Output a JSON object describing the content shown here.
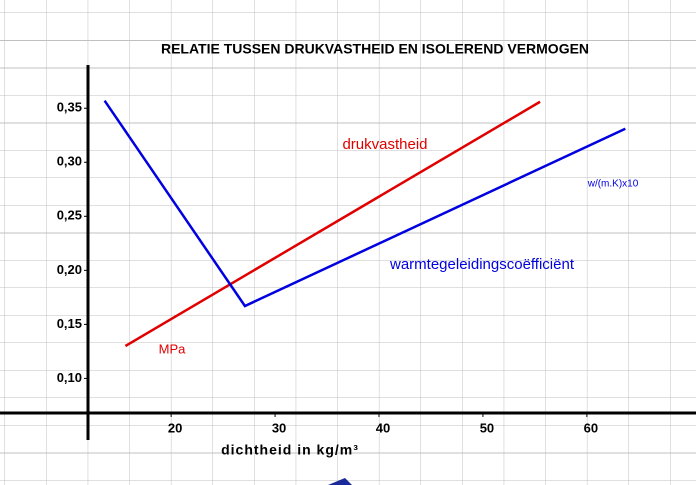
{
  "chart_data": {
    "type": "line",
    "title": "RELATIE TUSSEN DRUKVASTHEID EN ISOLEREND VERMOGEN",
    "x_label": "dichtheid in kg/m³",
    "xlim": [
      12,
      68
    ],
    "xticks": [
      20,
      30,
      40,
      50,
      60
    ],
    "ylim": [
      0.068,
      0.39
    ],
    "yticks": [
      {
        "value": 0.1,
        "label": "0,10"
      },
      {
        "value": 0.15,
        "label": "0,15"
      },
      {
        "value": 0.2,
        "label": "0,20"
      },
      {
        "value": 0.25,
        "label": "0,25"
      },
      {
        "value": 0.3,
        "label": "0,30"
      },
      {
        "value": 0.35,
        "label": "0,35"
      }
    ],
    "series": [
      {
        "name": "drukvastheid",
        "unit": "MPa",
        "color": "#e00000",
        "x": [
          15.6,
          55.5
        ],
        "values": [
          0.13,
          0.356
        ]
      },
      {
        "name": "warmtegeleidingscoëfficiënt",
        "unit": "w/(m.K)x10",
        "color": "#0000e0",
        "x": [
          13.6,
          27.1,
          63.7
        ],
        "values": [
          0.357,
          0.167,
          0.331
        ]
      }
    ]
  }
}
